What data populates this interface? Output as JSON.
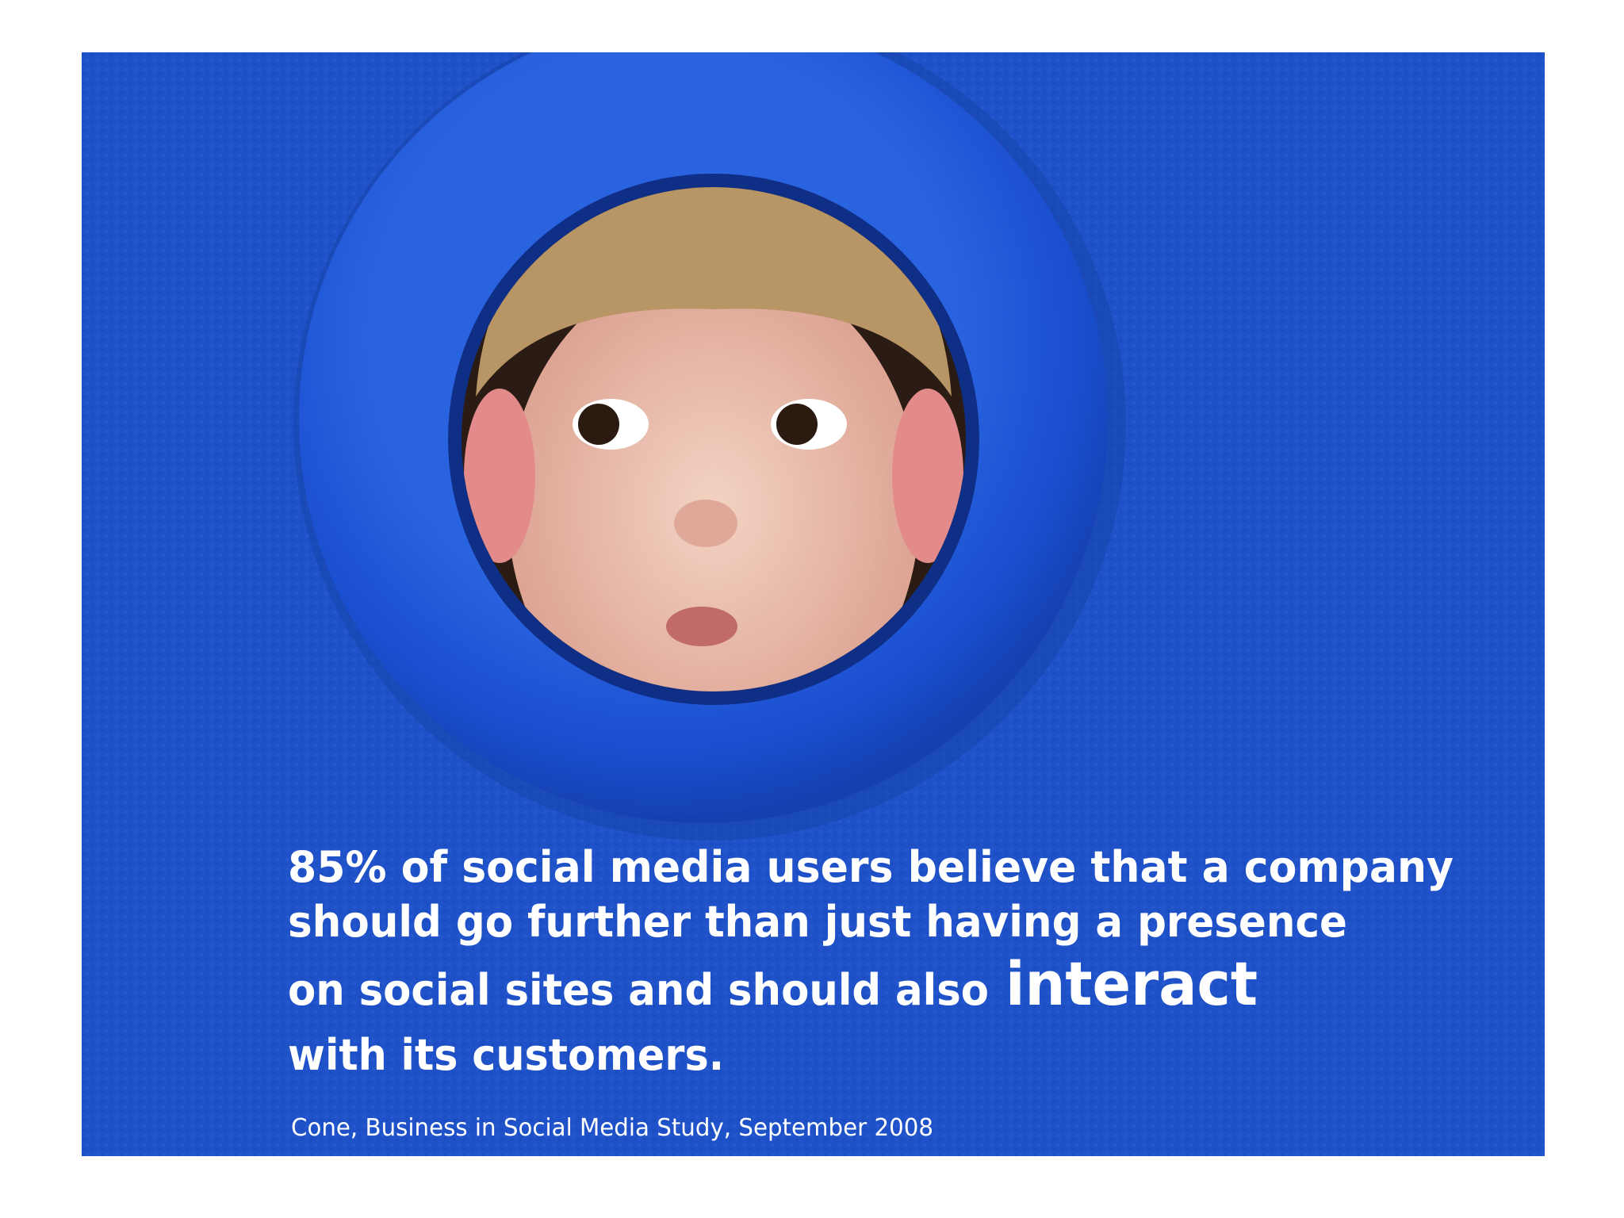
{
  "quote": {
    "line1": "85% of social media users believe that a company",
    "line2": "should go further than just having a presence",
    "line3": "on social sites and should also",
    "emphasis": "interact",
    "line4": "with its customers."
  },
  "source": "Cone, Business in Social Media Study, September 2008"
}
